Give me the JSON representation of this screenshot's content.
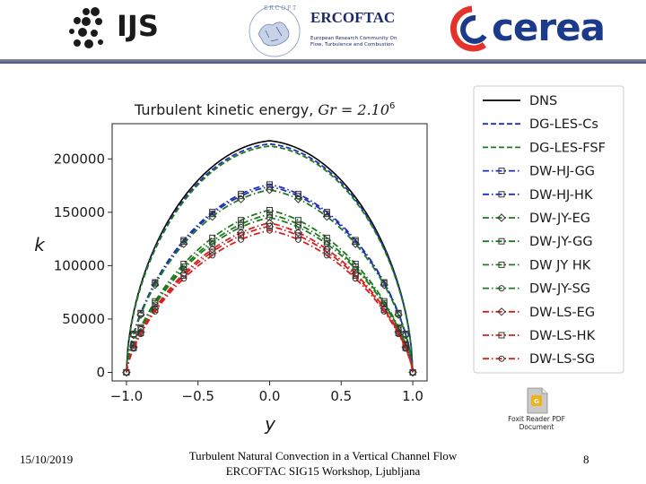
{
  "header": {
    "ijs": {
      "label": "IJS",
      "icon": "ijs-dots-icon"
    },
    "ercoftac": {
      "label": "ERCOFTAC",
      "subtitle": "European Research Community On Flow, Turbulence and Combustion",
      "icon": "ercoftac-seal-icon"
    },
    "cerea": {
      "label": "cerea",
      "icon": "cerea-swirl-icon",
      "colors": {
        "red": "#e5332a",
        "blue": "#1b3a8a"
      }
    }
  },
  "chart_data": {
    "type": "line",
    "title": "Turbulent kinetic energy, ",
    "title_math": "Gr = 2.10",
    "title_exp": "6",
    "xlabel": "y",
    "ylabel": "k",
    "xlim": [
      -1.1,
      1.1
    ],
    "ylim": [
      -8000,
      233000
    ],
    "xticks": [
      -1.0,
      -0.5,
      0.0,
      0.5,
      1.0
    ],
    "xtick_labels": [
      "−1.0",
      "−0.5",
      "0.0",
      "0.5",
      "1.0"
    ],
    "yticks": [
      0,
      50000,
      100000,
      150000,
      200000
    ],
    "ytick_labels": [
      "0",
      "50000",
      "100000",
      "150000",
      "200000"
    ],
    "grid": false,
    "legend_position": "outside-right",
    "series": [
      {
        "name": "DNS",
        "color": "#000000",
        "dash": "solid",
        "marker": "none",
        "peak": 217000,
        "shape": 0.16
      },
      {
        "name": "DG-LES-Cs",
        "color": "#1f2fb8",
        "dash": "dashed",
        "marker": "none",
        "peak": 214000,
        "shape": 0.16
      },
      {
        "name": "DG-LES-FSF",
        "color": "#1f7a1f",
        "dash": "dashed",
        "marker": "none",
        "peak": 212000,
        "shape": 0.16
      },
      {
        "name": "DW-HJ-GG",
        "color": "#1f2fb8",
        "dash": "dashdot",
        "marker": "square",
        "peak": 176000,
        "shape": 0.32
      },
      {
        "name": "DW-HJ-HK",
        "color": "#1f2fb8",
        "dash": "dashdot",
        "marker": "square",
        "peak": 174000,
        "shape": 0.32
      },
      {
        "name": "DW-JY-EG",
        "color": "#1f7a1f",
        "dash": "dashdot",
        "marker": "diamond",
        "peak": 171000,
        "shape": 0.32
      },
      {
        "name": "DW-JY-GG",
        "color": "#1f7a1f",
        "dash": "dashdot",
        "marker": "square",
        "peak": 152000,
        "shape": 0.42
      },
      {
        "name": "DW JY HK",
        "color": "#1f7a1f",
        "dash": "dashdot",
        "marker": "square",
        "peak": 148000,
        "shape": 0.42
      },
      {
        "name": "DW-JY-SG",
        "color": "#1f7a1f",
        "dash": "dashdot",
        "marker": "circle",
        "peak": 145000,
        "shape": 0.42
      },
      {
        "name": "DW-LS-EG",
        "color": "#d62020",
        "dash": "dashdot",
        "marker": "diamond",
        "peak": 140000,
        "shape": 0.44
      },
      {
        "name": "DW-LS-HK",
        "color": "#d62020",
        "dash": "dashdot",
        "marker": "square",
        "peak": 137000,
        "shape": 0.44
      },
      {
        "name": "DW-LS-SG",
        "color": "#d62020",
        "dash": "dashdot",
        "marker": "circle",
        "peak": 133000,
        "shape": 0.44
      }
    ],
    "marker_x": [
      -1.0,
      -0.95,
      -0.9,
      -0.8,
      -0.6,
      -0.4,
      -0.2,
      0.0,
      0.2,
      0.4,
      0.6,
      0.8,
      0.9,
      0.95,
      1.0
    ]
  },
  "foxit": {
    "icon": "pdf-file-icon",
    "label": "Foxit Reader PDF Document",
    "colors": {
      "body": "#c9c9c9",
      "badge": "#f0b21a"
    }
  },
  "footer": {
    "date": "15/10/2019",
    "title_line1": "Turbulent Natural Convection in a Vertical Channel Flow",
    "title_line2": "ERCOFTAC SIG15 Workshop, Ljubljana",
    "page": "8"
  }
}
